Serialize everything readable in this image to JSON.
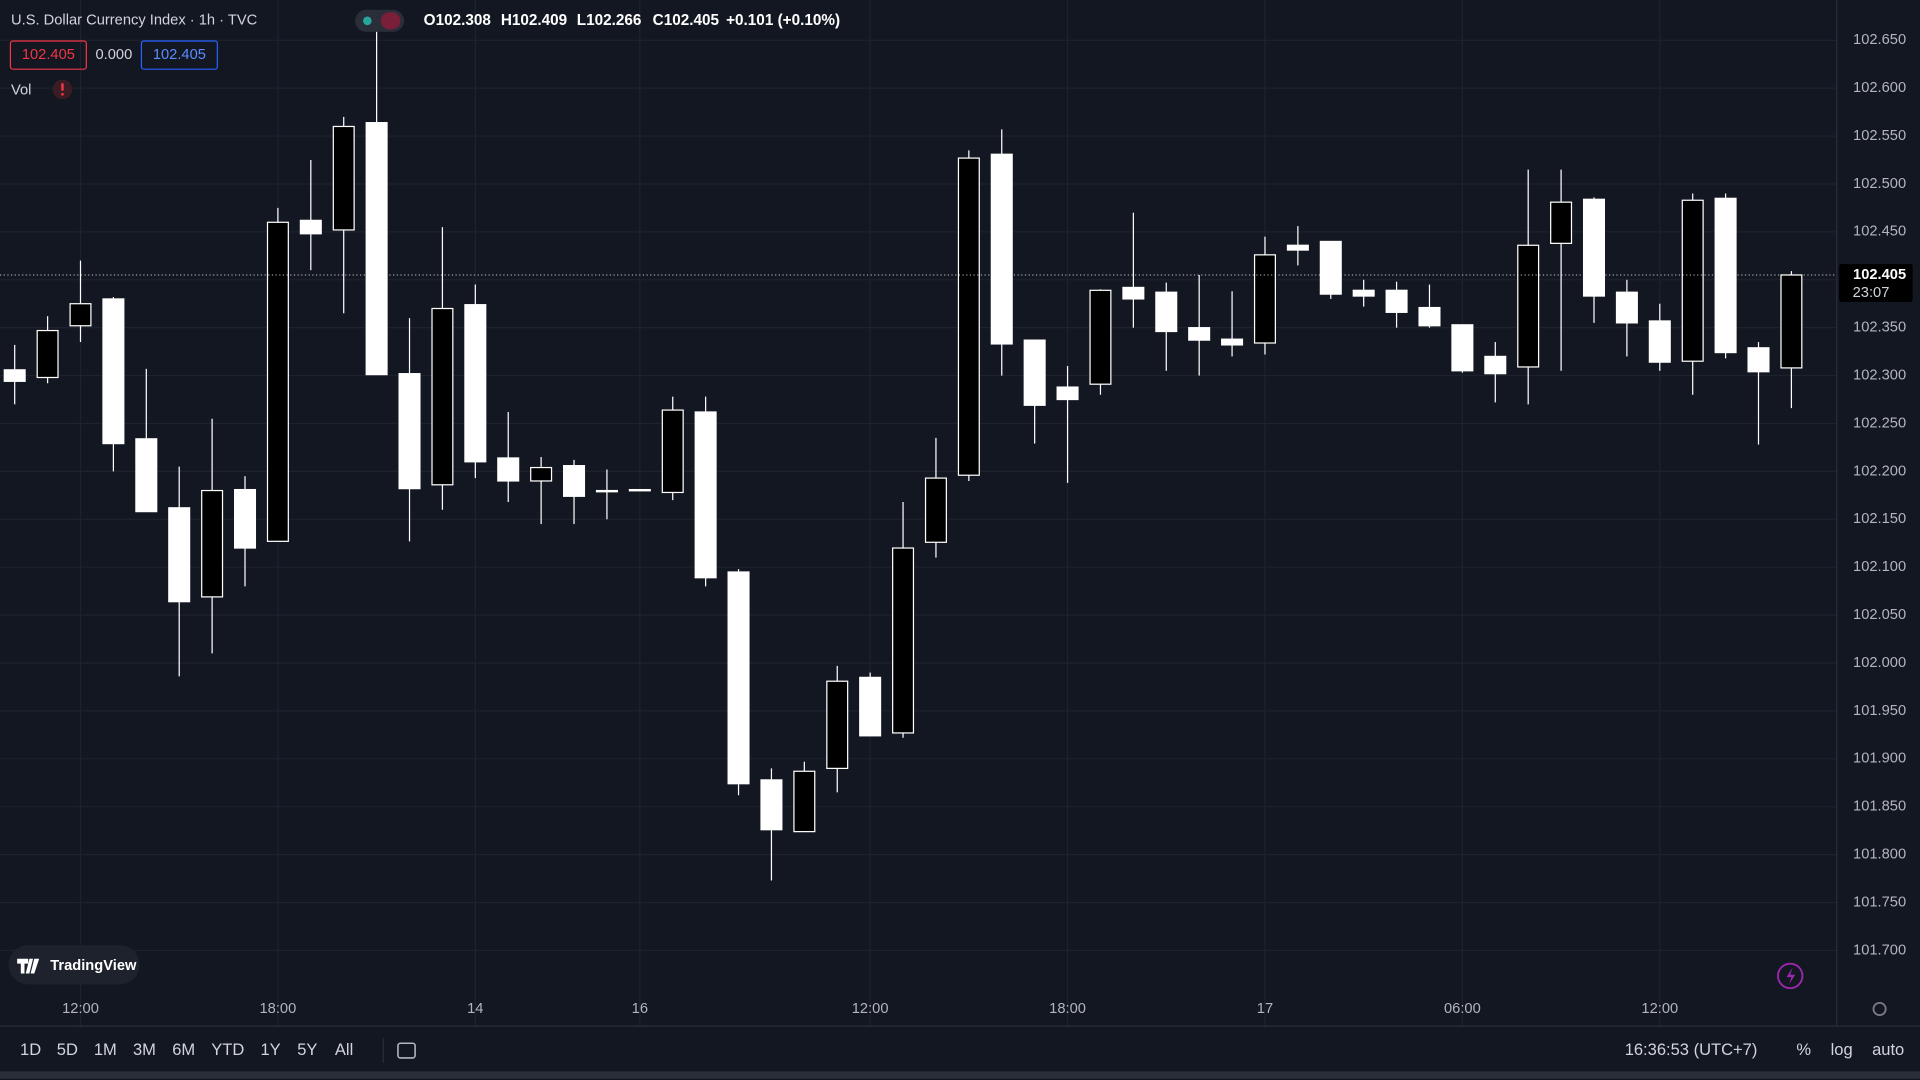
{
  "header": {
    "title": "U.S. Dollar Currency Index · 1h · TVC",
    "ohlc": [
      "O102.308",
      "H102.409",
      "L102.266",
      "C102.405",
      "+0.101 (+0.10%)"
    ],
    "inputs": [
      "102.405",
      "0.000",
      "102.405"
    ],
    "volume_label": "Vol"
  },
  "chart_data": {
    "type": "candlestick",
    "categories": [
      null,
      null,
      "12:00",
      null,
      null,
      null,
      null,
      null,
      "18:00",
      null,
      null,
      null,
      null,
      null,
      "14",
      null,
      null,
      null,
      null,
      "16",
      null,
      null,
      null,
      null,
      null,
      null,
      "12:00",
      null,
      null,
      null,
      null,
      null,
      "18:00",
      null,
      null,
      null,
      null,
      null,
      "17",
      null,
      null,
      null,
      null,
      null,
      "06:00",
      null,
      null,
      null,
      null,
      null,
      "12:00",
      null,
      null,
      null,
      null
    ],
    "open": [
      102.306,
      102.298,
      102.352,
      102.38,
      102.234,
      102.162,
      102.069,
      102.181,
      102.127,
      102.462,
      102.452,
      102.564,
      102.302,
      102.186,
      102.374,
      102.214,
      102.19,
      102.206,
      102.18,
      102.181,
      102.178,
      102.262,
      102.095,
      101.878,
      101.824,
      101.89,
      101.985,
      101.927,
      102.126,
      102.196,
      102.531,
      102.337,
      102.288,
      102.291,
      102.392,
      102.387,
      102.35,
      102.338,
      102.334,
      102.436,
      102.44,
      102.389,
      102.389,
      102.371,
      102.353,
      102.32,
      102.309,
      102.438,
      102.484,
      102.387,
      102.357,
      102.315,
      102.485,
      102.329,
      102.308
    ],
    "high": [
      102.332,
      102.362,
      102.42,
      102.382,
      102.307,
      102.205,
      102.255,
      102.195,
      102.475,
      102.525,
      102.57,
      102.66,
      102.36,
      102.455,
      102.395,
      102.262,
      102.215,
      102.212,
      102.202,
      102.181,
      102.278,
      102.278,
      102.098,
      101.89,
      101.897,
      101.997,
      101.99,
      102.168,
      102.235,
      102.535,
      102.557,
      102.337,
      102.31,
      102.39,
      102.47,
      102.397,
      102.405,
      102.388,
      102.445,
      102.456,
      102.44,
      102.4,
      102.398,
      102.395,
      102.353,
      102.335,
      102.515,
      102.515,
      102.486,
      102.4,
      102.375,
      102.49,
      102.49,
      102.335,
      102.409
    ],
    "low": [
      102.27,
      102.292,
      102.335,
      102.2,
      102.158,
      101.986,
      102.01,
      102.08,
      102.127,
      102.41,
      102.365,
      102.301,
      102.127,
      102.16,
      102.193,
      102.168,
      102.145,
      102.145,
      102.15,
      102.181,
      102.17,
      102.08,
      101.862,
      101.773,
      101.824,
      101.865,
      101.924,
      101.922,
      102.11,
      102.19,
      102.3,
      102.229,
      102.188,
      102.28,
      102.35,
      102.305,
      102.3,
      102.32,
      102.322,
      102.415,
      102.38,
      102.372,
      102.35,
      102.35,
      102.303,
      102.272,
      102.27,
      102.305,
      102.355,
      102.32,
      102.305,
      102.28,
      102.318,
      102.228,
      102.266
    ],
    "close": [
      102.294,
      102.347,
      102.375,
      102.229,
      102.158,
      102.064,
      102.18,
      102.12,
      102.46,
      102.448,
      102.56,
      102.301,
      102.182,
      102.37,
      102.21,
      102.19,
      102.204,
      102.174,
      102.18,
      102.181,
      102.264,
      102.089,
      101.874,
      101.826,
      101.887,
      101.981,
      101.924,
      102.12,
      102.193,
      102.527,
      102.333,
      102.269,
      102.275,
      102.389,
      102.38,
      102.346,
      102.337,
      102.332,
      102.426,
      102.431,
      102.385,
      102.383,
      102.366,
      102.352,
      102.305,
      102.302,
      102.436,
      102.481,
      102.383,
      102.355,
      102.314,
      102.483,
      102.324,
      102.304,
      102.405
    ],
    "up_color": "#000000",
    "down_color": "#ffffff",
    "wick_color": "#ffffff",
    "ylim": [
      101.621,
      102.692
    ],
    "yticks": [
      {
        "value": 101.7,
        "label": "101.700"
      },
      {
        "value": 101.75,
        "label": "101.750"
      },
      {
        "value": 101.8,
        "label": "101.800"
      },
      {
        "value": 101.85,
        "label": "101.850"
      },
      {
        "value": 101.9,
        "label": "101.900"
      },
      {
        "value": 101.95,
        "label": "101.950"
      },
      {
        "value": 102,
        "label": "102.000"
      },
      {
        "value": 102.05,
        "label": "102.050"
      },
      {
        "value": 102.1,
        "label": "102.100"
      },
      {
        "value": 102.15,
        "label": "102.150"
      },
      {
        "value": 102.2,
        "label": "102.200"
      },
      {
        "value": 102.25,
        "label": "102.250"
      },
      {
        "value": 102.3,
        "label": "102.300"
      },
      {
        "value": 102.35,
        "label": "102.350"
      },
      {
        "value": 102.4,
        "label": "102.400"
      },
      {
        "value": 102.45,
        "label": "102.450"
      },
      {
        "value": 102.5,
        "label": "102.500"
      },
      {
        "value": 102.55,
        "label": "102.550"
      },
      {
        "value": 102.6,
        "label": "102.600"
      },
      {
        "value": 102.65,
        "label": "102.650"
      }
    ],
    "grid": true,
    "last_price": {
      "value": 102.405,
      "label": "102.405",
      "countdown": "23:07"
    }
  },
  "footer": {
    "ranges": [
      "1D",
      "5D",
      "1M",
      "3M",
      "6M",
      "YTD",
      "1Y",
      "5Y",
      "All"
    ],
    "clock": "16:36:53 (UTC+7)",
    "scale_options": [
      "%",
      "log",
      "auto"
    ],
    "brand": "TradingView"
  }
}
